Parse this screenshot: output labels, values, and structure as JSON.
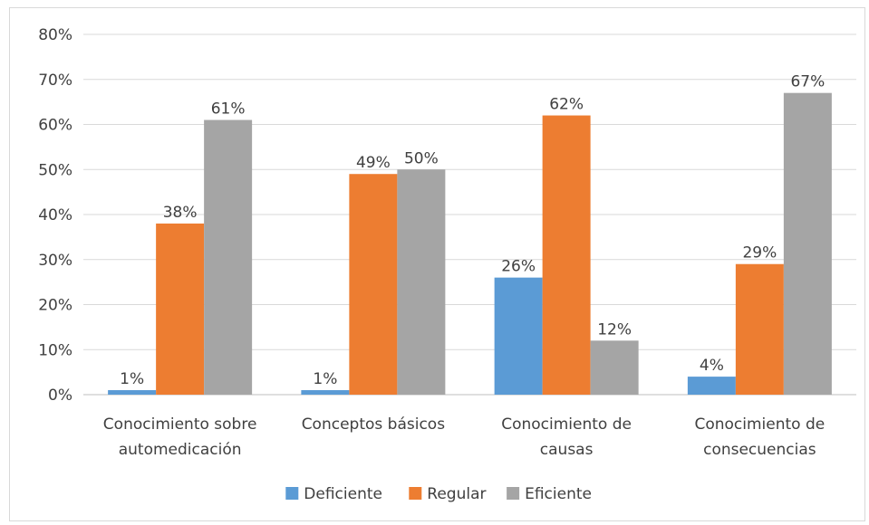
{
  "chart_data": {
    "type": "bar",
    "title": "",
    "xlabel": "",
    "ylabel": "",
    "ylim": [
      0,
      80
    ],
    "y_ticks": [
      "0%",
      "10%",
      "20%",
      "30%",
      "40%",
      "50%",
      "60%",
      "70%",
      "80%"
    ],
    "y_tick_values": [
      0,
      10,
      20,
      30,
      40,
      50,
      60,
      70,
      80
    ],
    "categories": [
      [
        "Conocimiento sobre",
        "automedicación"
      ],
      [
        "Conceptos básicos"
      ],
      [
        "Conocimiento de",
        "causas"
      ],
      [
        "Conocimiento de",
        "consecuencias"
      ]
    ],
    "series": [
      {
        "name": "Deficiente",
        "color": "#5b9bd5",
        "values": [
          1,
          1,
          26,
          4
        ],
        "labels": [
          "1%",
          "1%",
          "26%",
          "4%"
        ]
      },
      {
        "name": "Regular",
        "color": "#ed7d31",
        "values": [
          38,
          49,
          62,
          29
        ],
        "labels": [
          "38%",
          "49%",
          "62%",
          "29%"
        ]
      },
      {
        "name": "Eficiente",
        "color": "#a5a5a5",
        "values": [
          61,
          50,
          12,
          67
        ],
        "labels": [
          "61%",
          "50%",
          "12%",
          "67%"
        ]
      }
    ],
    "grid": true,
    "legend_position": "bottom"
  }
}
